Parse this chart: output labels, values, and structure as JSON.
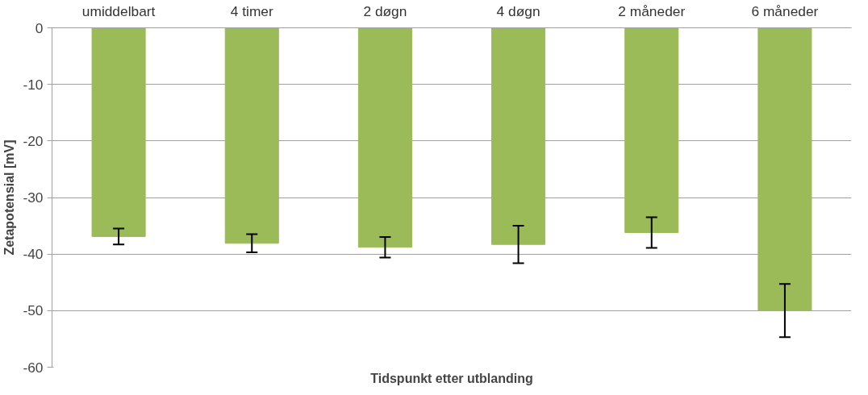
{
  "chart_data": {
    "type": "bar",
    "xlabel": "Tidspunkt etter utblanding",
    "ylabel": "Zetapotensial [mV]",
    "categories": [
      "umiddelbart",
      "4 timer",
      "2 døgn",
      "4 døgn",
      "2 måneder",
      "6 måneder"
    ],
    "values": [
      -36.9,
      -38.1,
      -38.8,
      -38.3,
      -36.2,
      -50.0
    ],
    "errors": [
      1.4,
      1.6,
      1.8,
      3.3,
      2.7,
      4.7
    ],
    "color": "#9bbb59",
    "ylim": [
      -60,
      0
    ],
    "yticks": [
      0,
      -10,
      -20,
      -30,
      -40,
      -50,
      -60
    ],
    "grid": "y"
  }
}
